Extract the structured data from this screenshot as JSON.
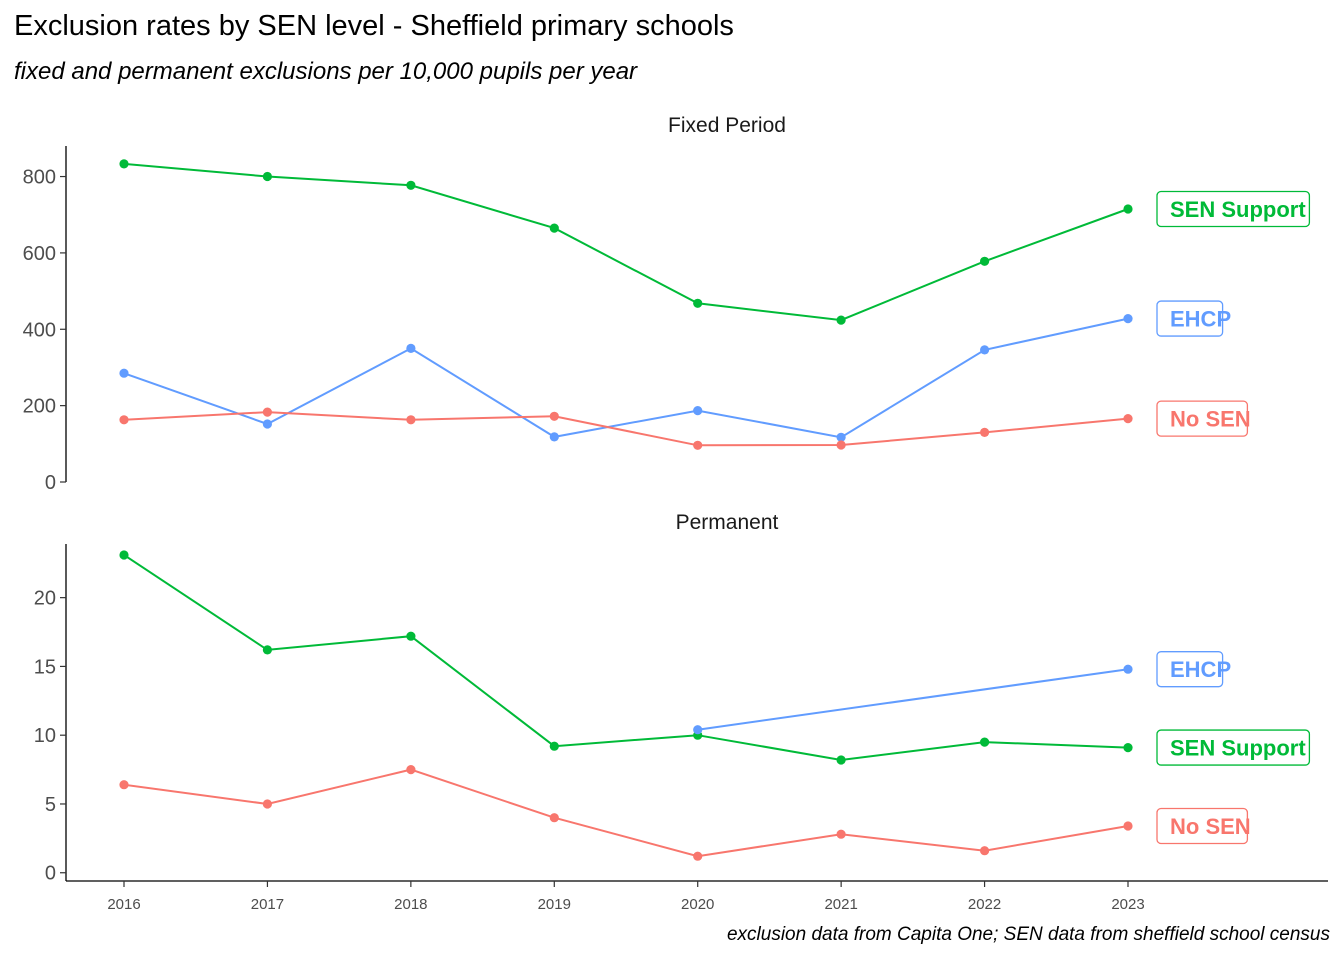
{
  "chart_data": {
    "type": "line",
    "title": "Exclusion rates by SEN level - Sheffield primary schools",
    "subtitle": "fixed and permanent exclusions per 10,000 pupils per year",
    "caption": "exclusion data from Capita One; SEN data from sheffield school census",
    "x": [
      2016,
      2017,
      2018,
      2019,
      2020,
      2021,
      2022,
      2023
    ],
    "x_tick_labels": [
      "2016",
      "2017",
      "2018",
      "2019",
      "2020",
      "2021",
      "2022",
      "2023"
    ],
    "grid": false,
    "legend": "direct labels at line ends (right)",
    "colors": {
      "SEN Support": "#00BA38",
      "EHCP": "#619CFF",
      "No SEN": "#F8766D"
    },
    "panels": [
      {
        "name": "Fixed Period",
        "ylim": [
          0,
          880
        ],
        "y_ticks": [
          0,
          200,
          400,
          600,
          800
        ],
        "series": [
          {
            "name": "SEN Support",
            "values": [
              833,
              800,
              777,
              665,
              468,
              424,
              578,
              715
            ]
          },
          {
            "name": "EHCP",
            "values": [
              285,
              152,
              350,
              118,
              187,
              117,
              346,
              428
            ]
          },
          {
            "name": "No SEN",
            "values": [
              163,
              183,
              163,
              172,
              96,
              97,
              130,
              166
            ]
          }
        ]
      },
      {
        "name": "Permanent",
        "ylim": [
          -0.6,
          23.9
        ],
        "y_ticks": [
          0,
          5,
          10,
          15,
          20
        ],
        "series": [
          {
            "name": "SEN Support",
            "values": [
              23.1,
              16.2,
              17.2,
              9.2,
              10.0,
              8.2,
              9.5,
              9.1
            ]
          },
          {
            "name": "EHCP",
            "values": [
              null,
              null,
              null,
              null,
              10.4,
              null,
              null,
              14.8
            ]
          },
          {
            "name": "No SEN",
            "values": [
              6.4,
              5.0,
              7.5,
              4.0,
              1.2,
              2.8,
              1.6,
              3.4
            ]
          }
        ]
      }
    ]
  }
}
